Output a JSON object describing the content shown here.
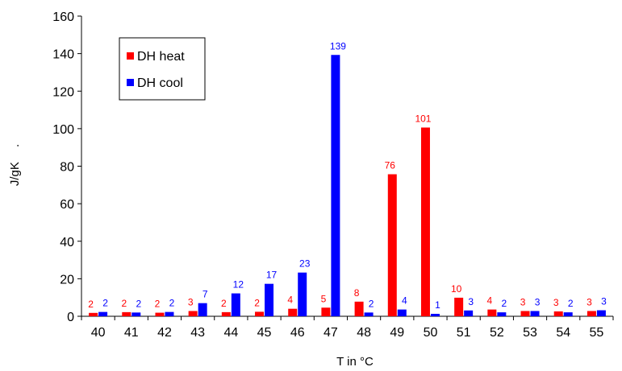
{
  "chart_data": {
    "type": "bar",
    "title": "",
    "xlabel": "T in °C",
    "ylabel": "J/gK",
    "ylabel_suffix": ".",
    "ylim": [
      0,
      160
    ],
    "yticks": [
      0,
      20,
      40,
      60,
      80,
      100,
      120,
      140,
      160
    ],
    "categories": [
      "40",
      "41",
      "42",
      "43",
      "44",
      "45",
      "46",
      "47",
      "48",
      "49",
      "50",
      "51",
      "52",
      "53",
      "54",
      "55"
    ],
    "series": [
      {
        "name": "DH heat",
        "color": "#ff0000",
        "values": [
          1.8,
          2.2,
          1.9,
          2.8,
          2.2,
          2.4,
          4.0,
          4.6,
          7.8,
          75.7,
          100.6,
          9.9,
          3.6,
          2.8,
          2.6,
          2.8
        ],
        "labels": [
          "2",
          "2",
          "2",
          "3",
          "2",
          "2",
          "4",
          "5",
          "8",
          "76",
          "101",
          "10",
          "4",
          "3",
          "3",
          "3"
        ]
      },
      {
        "name": "DH cool",
        "color": "#0000ff",
        "values": [
          2.3,
          2.0,
          2.3,
          7.0,
          12.2,
          17.3,
          23.3,
          139.3,
          2.0,
          3.6,
          1.3,
          3.1,
          2.1,
          2.8,
          2.1,
          3.2
        ],
        "labels": [
          "2",
          "2",
          "2",
          "7",
          "12",
          "17",
          "23",
          "139",
          "2",
          "4",
          "1",
          "3",
          "2",
          "3",
          "2",
          "3"
        ]
      }
    ],
    "legend": "top-left",
    "grid": false
  }
}
